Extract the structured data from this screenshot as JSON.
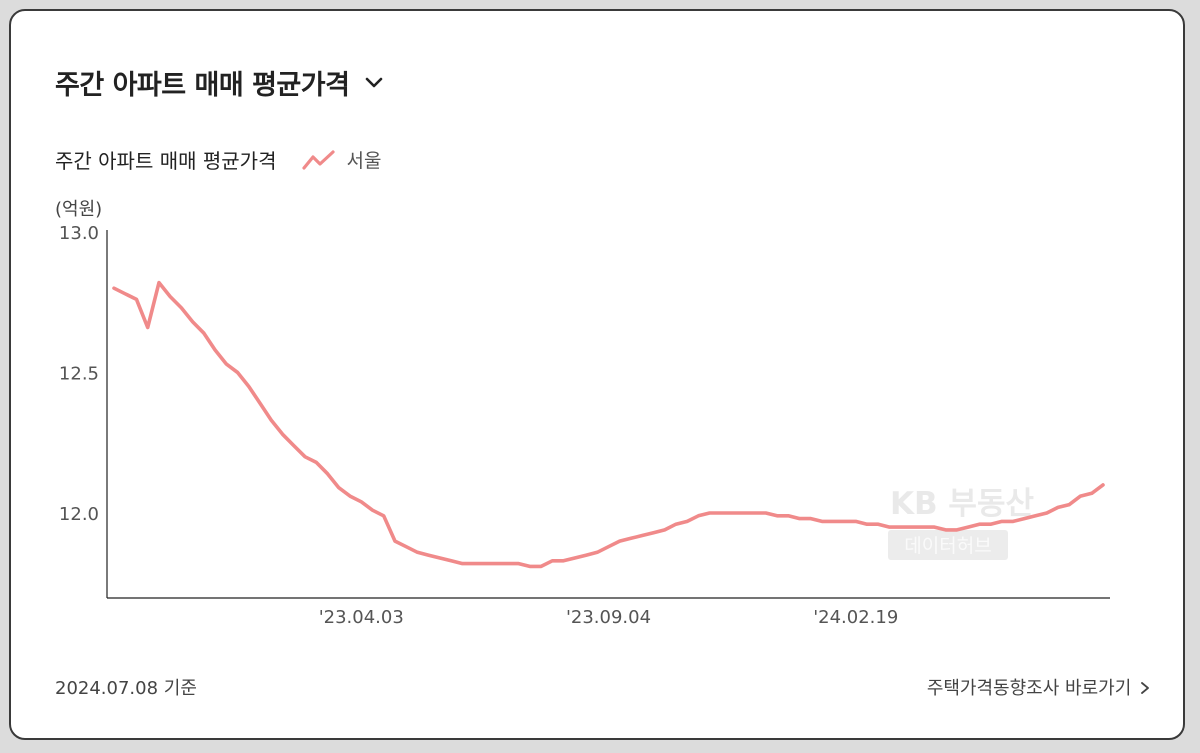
{
  "header": {
    "title": "주간 아파트 매매 평균가격"
  },
  "chart_data": {
    "type": "line",
    "title": "주간 아파트 매매 평균가격",
    "unit": "(억원)",
    "ylim": [
      11.7,
      13.0
    ],
    "yticks": [
      "13.0",
      "12.5",
      "12.0"
    ],
    "ytick_values": [
      13.0,
      12.5,
      12.0
    ],
    "xticks": [
      "'23.04.03",
      "'23.09.04",
      "'24.02.19"
    ],
    "xtick_index": [
      22,
      44,
      66
    ],
    "series": [
      {
        "name": "서울",
        "color": "#f08a8a",
        "values": [
          12.8,
          12.78,
          12.76,
          12.66,
          12.82,
          12.77,
          12.73,
          12.68,
          12.64,
          12.58,
          12.53,
          12.5,
          12.45,
          12.39,
          12.33,
          12.28,
          12.24,
          12.2,
          12.18,
          12.14,
          12.09,
          12.06,
          12.04,
          12.01,
          11.99,
          11.9,
          11.88,
          11.86,
          11.85,
          11.84,
          11.83,
          11.82,
          11.82,
          11.82,
          11.82,
          11.82,
          11.82,
          11.81,
          11.81,
          11.83,
          11.83,
          11.84,
          11.85,
          11.86,
          11.88,
          11.9,
          11.91,
          11.92,
          11.93,
          11.94,
          11.96,
          11.97,
          11.99,
          12.0,
          12.0,
          12.0,
          12.0,
          12.0,
          12.0,
          11.99,
          11.99,
          11.98,
          11.98,
          11.97,
          11.97,
          11.97,
          11.97,
          11.96,
          11.96,
          11.95,
          11.95,
          11.95,
          11.95,
          11.95,
          11.94,
          11.94,
          11.95,
          11.96,
          11.96,
          11.97,
          11.97,
          11.98,
          11.99,
          12.0,
          12.02,
          12.03,
          12.06,
          12.07,
          12.1
        ]
      }
    ],
    "watermark": [
      "KB 부동산",
      "데이터허브"
    ]
  },
  "footer": {
    "as_of": "2024.07.08 기준",
    "link": "주택가격동향조사 바로가기"
  },
  "icons": {
    "dropdown": "chevron-down-icon",
    "legend": "line-series-icon",
    "link_arrow": "chevron-right-icon"
  }
}
